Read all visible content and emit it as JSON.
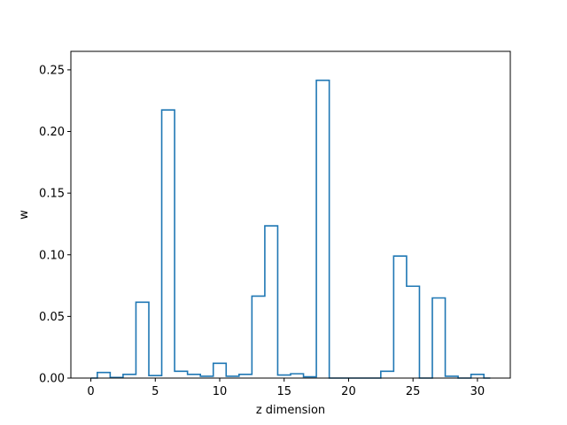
{
  "chart_data": {
    "type": "step",
    "xlabel": "z dimension",
    "ylabel": "w",
    "xlim": [
      -1.55,
      32.55
    ],
    "ylim": [
      0,
      0.265
    ],
    "x_ticks": [
      0,
      5,
      10,
      15,
      20,
      25,
      30
    ],
    "x_tick_labels": [
      "0",
      "5",
      "10",
      "15",
      "20",
      "25",
      "30"
    ],
    "y_ticks": [
      0,
      0.05,
      0.1,
      0.15,
      0.2,
      0.25
    ],
    "y_tick_labels": [
      "0.00",
      "0.05",
      "0.10",
      "0.15",
      "0.20",
      "0.25"
    ],
    "line_color": "#1f77b4",
    "grid": false,
    "legend": "none",
    "x": [
      0,
      1,
      2,
      3,
      4,
      5,
      6,
      7,
      8,
      9,
      10,
      11,
      12,
      13,
      14,
      15,
      16,
      17,
      18,
      19,
      20,
      21,
      22,
      23,
      24,
      25,
      26,
      27,
      28,
      29,
      30,
      31
    ],
    "values": [
      0.0,
      0.0045,
      0.0005,
      0.003,
      0.0615,
      0.002,
      0.2175,
      0.0055,
      0.003,
      0.0015,
      0.012,
      0.0015,
      0.003,
      0.0665,
      0.1235,
      0.0025,
      0.0035,
      0.001,
      0.2415,
      0.0,
      0.0,
      0.0,
      0.0,
      0.0055,
      0.099,
      0.0745,
      0.0,
      0.065,
      0.0015,
      0.0,
      0.003,
      0.0
    ]
  }
}
